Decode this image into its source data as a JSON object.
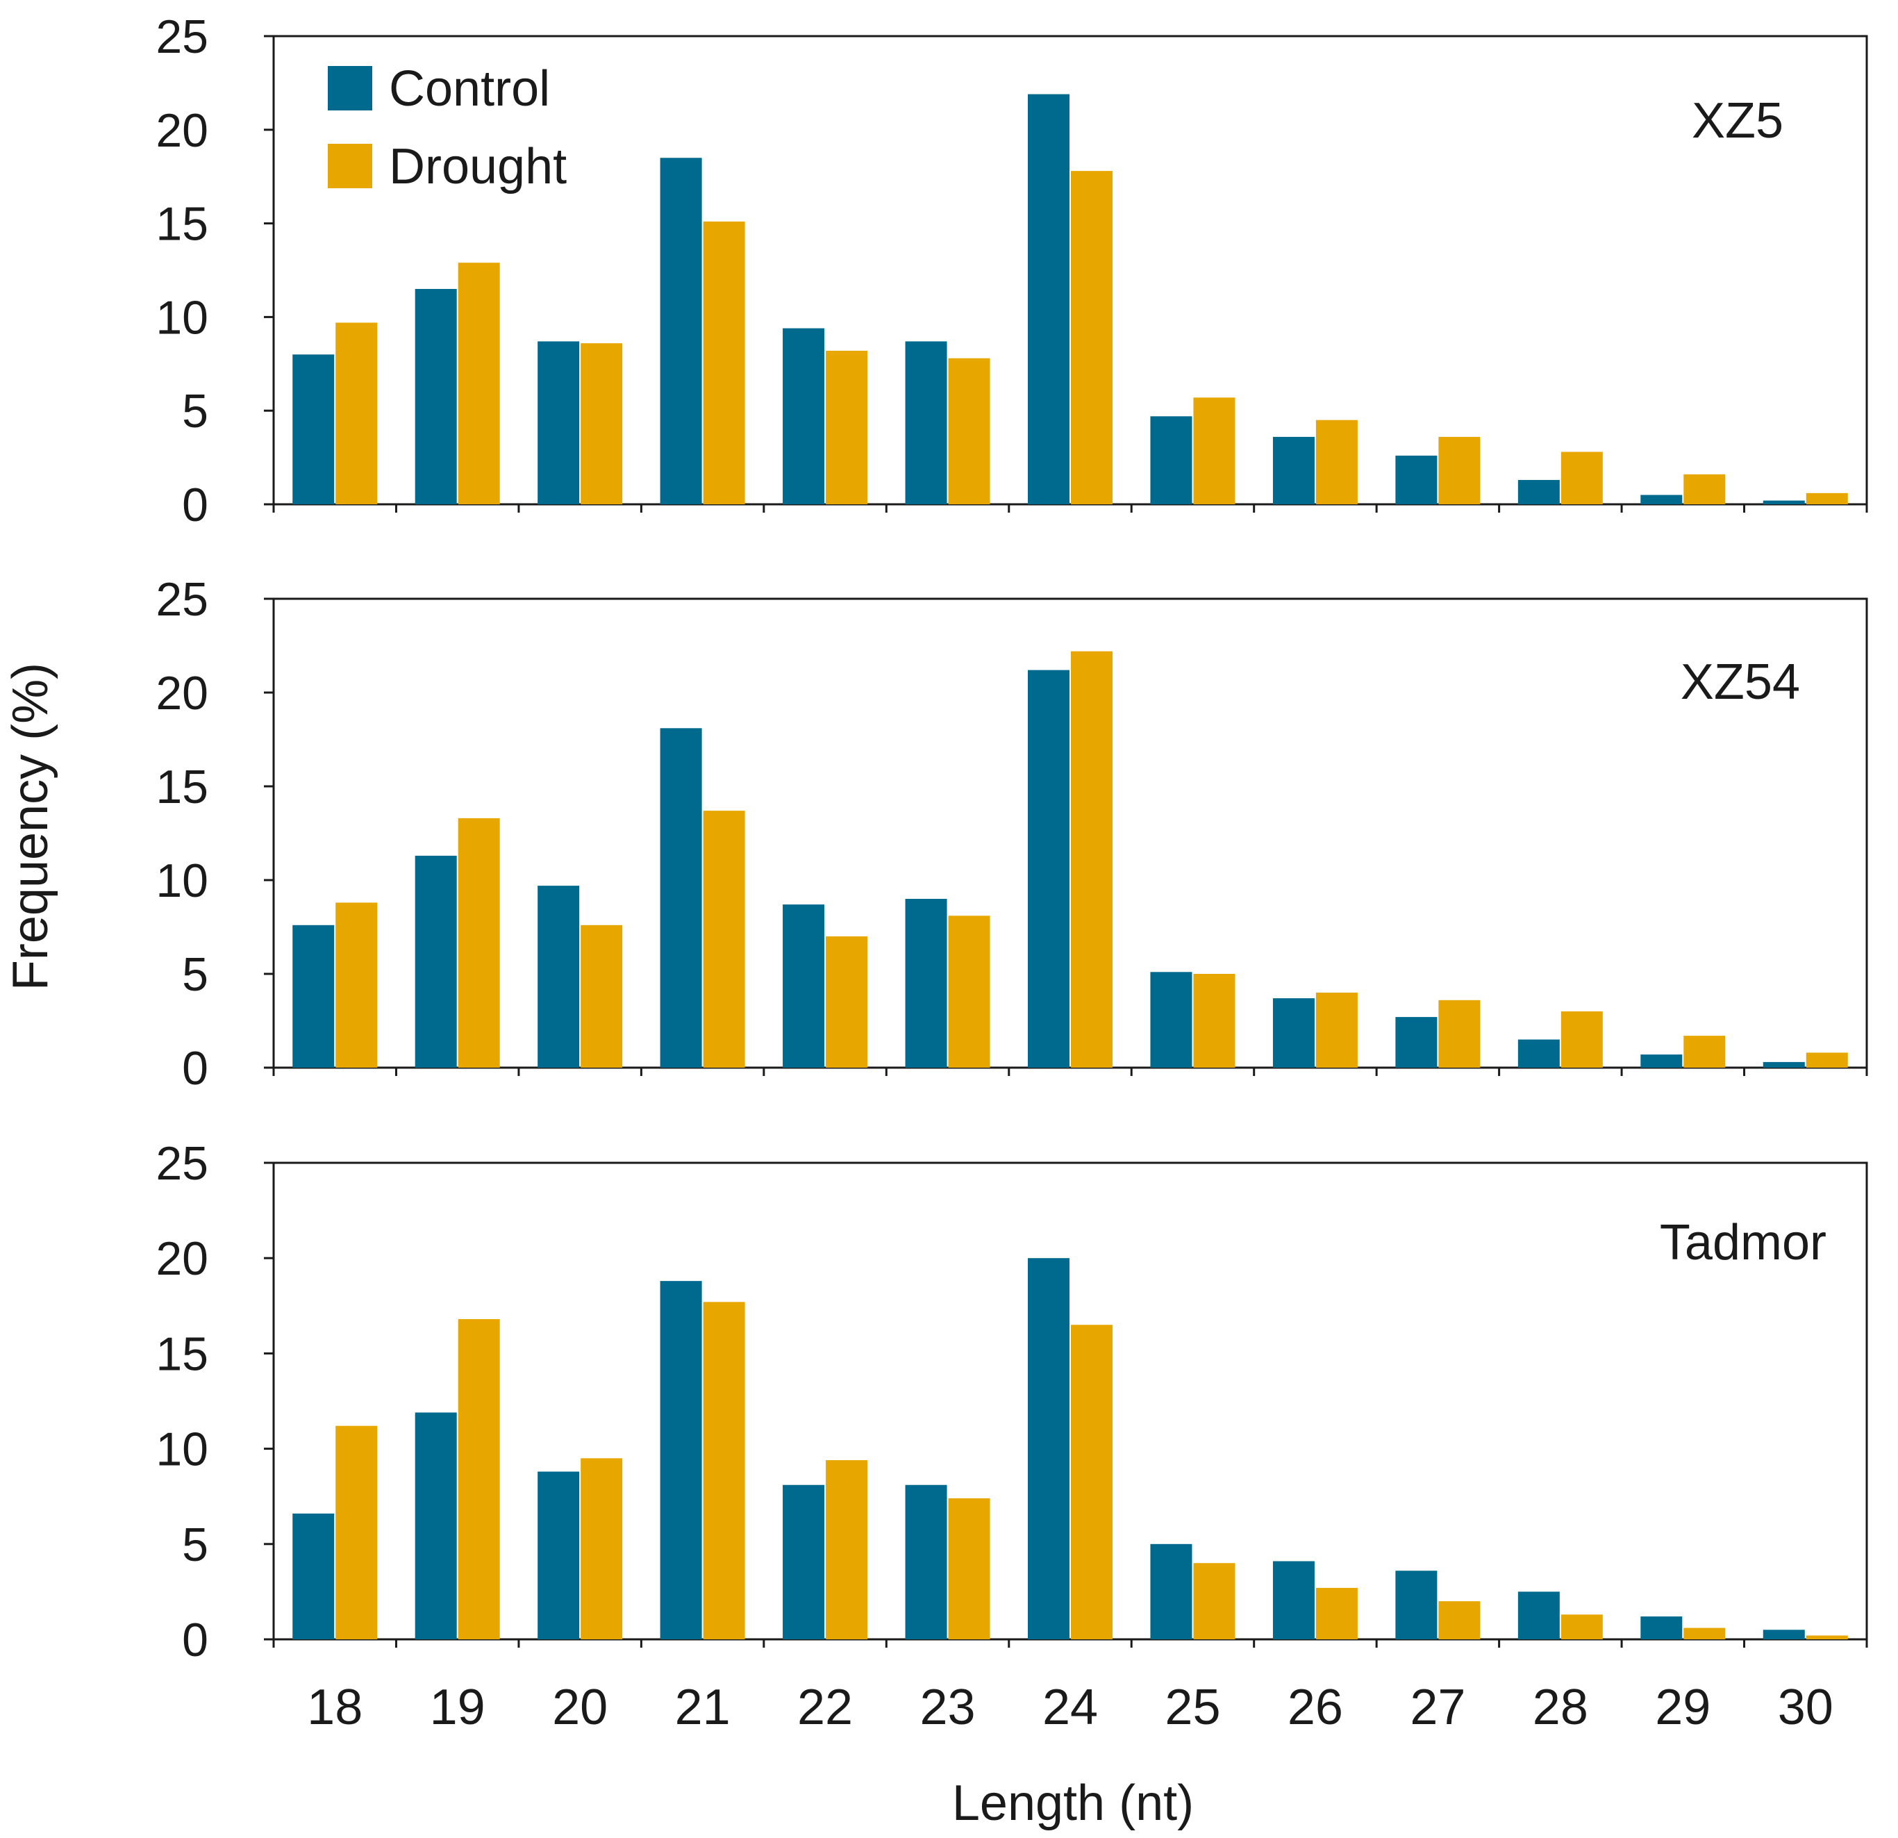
{
  "colors": {
    "control": "#006a8e",
    "drought": "#e8a700",
    "axis": "#1a1a1a"
  },
  "ylabel": "Frequency (%)",
  "xlabel": "Length (nt)",
  "legend": {
    "control_label": "Control",
    "drought_label": "Drought"
  },
  "chart_data": [
    {
      "type": "bar",
      "title": "XZ5",
      "categories": [
        "18",
        "19",
        "20",
        "21",
        "22",
        "23",
        "24",
        "25",
        "26",
        "27",
        "28",
        "29",
        "30"
      ],
      "yticks": [
        "0",
        "5",
        "10",
        "15",
        "20",
        "25"
      ],
      "ylim": [
        0,
        25
      ],
      "series": [
        {
          "name": "Control",
          "values": [
            8.0,
            11.5,
            8.7,
            18.5,
            9.4,
            8.7,
            21.9,
            4.7,
            3.6,
            2.6,
            1.3,
            0.5,
            0.2
          ]
        },
        {
          "name": "Drought",
          "values": [
            9.7,
            12.9,
            8.6,
            15.1,
            8.2,
            7.8,
            17.8,
            5.7,
            4.5,
            3.6,
            2.8,
            1.6,
            0.6
          ]
        }
      ]
    },
    {
      "type": "bar",
      "title": "XZ54",
      "categories": [
        "18",
        "19",
        "20",
        "21",
        "22",
        "23",
        "24",
        "25",
        "26",
        "27",
        "28",
        "29",
        "30"
      ],
      "yticks": [
        "0",
        "5",
        "10",
        "15",
        "20",
        "25"
      ],
      "ylim": [
        0,
        25
      ],
      "series": [
        {
          "name": "Control",
          "values": [
            7.6,
            11.3,
            9.7,
            18.1,
            8.7,
            9.0,
            21.2,
            5.1,
            3.7,
            2.7,
            1.5,
            0.7,
            0.3
          ]
        },
        {
          "name": "Drought",
          "values": [
            8.8,
            13.3,
            7.6,
            13.7,
            7.0,
            8.1,
            22.2,
            5.0,
            4.0,
            3.6,
            3.0,
            1.7,
            0.8
          ]
        }
      ]
    },
    {
      "type": "bar",
      "title": "Tadmor",
      "categories": [
        "18",
        "19",
        "20",
        "21",
        "22",
        "23",
        "24",
        "25",
        "26",
        "27",
        "28",
        "29",
        "30"
      ],
      "yticks": [
        "0",
        "5",
        "10",
        "15",
        "20",
        "25"
      ],
      "ylim": [
        0,
        25
      ],
      "series": [
        {
          "name": "Control",
          "values": [
            6.6,
            11.9,
            8.8,
            18.8,
            8.1,
            8.1,
            20.0,
            5.0,
            4.1,
            3.6,
            2.5,
            1.2,
            0.5
          ]
        },
        {
          "name": "Drought",
          "values": [
            11.2,
            16.8,
            9.5,
            17.7,
            9.4,
            7.4,
            16.5,
            4.0,
            2.7,
            2.0,
            1.3,
            0.6,
            0.2
          ]
        }
      ]
    }
  ]
}
